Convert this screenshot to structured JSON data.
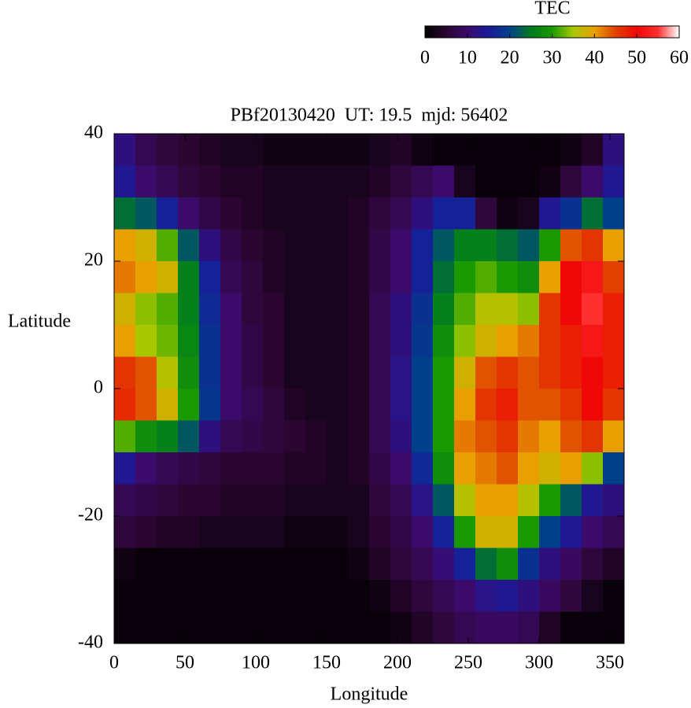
{
  "chart_data": {
    "type": "heatmap",
    "title": "PBf20130420  UT: 19.5  mjd: 56402",
    "x_label": "Longitude",
    "y_label": "Latitude",
    "xlim": [
      0,
      360
    ],
    "ylim": [
      -40,
      40
    ],
    "xticks": [
      0,
      50,
      100,
      150,
      200,
      250,
      300,
      350
    ],
    "yticks": [
      -40,
      -20,
      0,
      20,
      40
    ],
    "x": [
      7.5,
      22.5,
      37.5,
      52.5,
      67.5,
      82.5,
      97.5,
      112.5,
      127.5,
      142.5,
      157.5,
      172.5,
      187.5,
      202.5,
      217.5,
      232.5,
      247.5,
      262.5,
      277.5,
      292.5,
      307.5,
      322.5,
      337.5,
      352.5
    ],
    "y": [
      37.5,
      32.5,
      27.5,
      22.5,
      17.5,
      12.5,
      7.5,
      2.5,
      -2.5,
      -7.5,
      -12.5,
      -17.5,
      -22.5,
      -27.5,
      -32.5,
      -37.5
    ],
    "values": [
      [
        12,
        8,
        6,
        5,
        4,
        3,
        3,
        2,
        2,
        2,
        2,
        2,
        3,
        4,
        2,
        1,
        1,
        1,
        1,
        1,
        1,
        2,
        4,
        12
      ],
      [
        14,
        10,
        8,
        6,
        5,
        4,
        4,
        3,
        3,
        3,
        3,
        3,
        4,
        6,
        8,
        10,
        3,
        1,
        1,
        1,
        2,
        6,
        10,
        14
      ],
      [
        24,
        22,
        16,
        10,
        7,
        5,
        4,
        3,
        3,
        3,
        3,
        4,
        6,
        8,
        12,
        16,
        16,
        6,
        2,
        3,
        14,
        18,
        24,
        20
      ],
      [
        40,
        38,
        32,
        22,
        12,
        7,
        5,
        4,
        3,
        3,
        3,
        4,
        7,
        10,
        16,
        22,
        26,
        26,
        24,
        22,
        30,
        44,
        46,
        40
      ],
      [
        42,
        40,
        38,
        26,
        16,
        8,
        6,
        4,
        3,
        3,
        3,
        4,
        7,
        10,
        16,
        24,
        30,
        32,
        30,
        28,
        40,
        50,
        52,
        45
      ],
      [
        38,
        34,
        32,
        26,
        17,
        10,
        6,
        5,
        3,
        3,
        3,
        4,
        8,
        12,
        18,
        26,
        32,
        36,
        36,
        34,
        46,
        50,
        55,
        48
      ],
      [
        40,
        35,
        33,
        27,
        18,
        10,
        7,
        5,
        3,
        3,
        3,
        4,
        8,
        12,
        19,
        28,
        34,
        38,
        40,
        42,
        46,
        48,
        52,
        48
      ],
      [
        46,
        44,
        36,
        28,
        18,
        10,
        7,
        5,
        3,
        3,
        3,
        4,
        8,
        13,
        20,
        30,
        38,
        44,
        46,
        44,
        46,
        48,
        50,
        48
      ],
      [
        47,
        44,
        38,
        30,
        19,
        10,
        8,
        6,
        4,
        3,
        3,
        4,
        8,
        13,
        20,
        30,
        40,
        46,
        48,
        44,
        44,
        46,
        50,
        46
      ],
      [
        32,
        28,
        26,
        22,
        12,
        8,
        7,
        6,
        5,
        4,
        3,
        4,
        8,
        12,
        20,
        30,
        42,
        44,
        46,
        42,
        40,
        44,
        46,
        40
      ],
      [
        14,
        10,
        8,
        7,
        6,
        5,
        5,
        5,
        4,
        4,
        3,
        4,
        7,
        10,
        17,
        28,
        40,
        42,
        44,
        40,
        38,
        40,
        34,
        20
      ],
      [
        8,
        7,
        6,
        5,
        5,
        4,
        4,
        4,
        3,
        3,
        3,
        3,
        6,
        8,
        13,
        22,
        36,
        40,
        40,
        36,
        30,
        22,
        14,
        12
      ],
      [
        6,
        5,
        4,
        4,
        3,
        3,
        3,
        3,
        2,
        2,
        2,
        3,
        5,
        7,
        10,
        16,
        30,
        38,
        38,
        30,
        20,
        14,
        10,
        8
      ],
      [
        2,
        1,
        1,
        1,
        1,
        1,
        1,
        1,
        1,
        1,
        1,
        2,
        4,
        6,
        8,
        11,
        16,
        24,
        28,
        18,
        12,
        9,
        6,
        4
      ],
      [
        1,
        1,
        1,
        1,
        1,
        1,
        1,
        1,
        1,
        1,
        1,
        1,
        2,
        4,
        6,
        8,
        10,
        13,
        14,
        12,
        9,
        6,
        3,
        1
      ],
      [
        1,
        1,
        1,
        1,
        1,
        1,
        1,
        1,
        1,
        1,
        1,
        1,
        1,
        2,
        4,
        6,
        8,
        9,
        9,
        8,
        4,
        1,
        1,
        1
      ]
    ],
    "colormap": [
      "#000000",
      "#2a0630",
      "#3c0a6a",
      "#1a1a9a",
      "#00408a",
      "#007a20",
      "#1a9a00",
      "#a8c800",
      "#e8a000",
      "#e04000",
      "#f00808",
      "#ff3030",
      "#ffffff"
    ],
    "colorbar": {
      "title": "TEC",
      "lim": [
        0,
        60
      ],
      "ticks": [
        0,
        10,
        20,
        30,
        40,
        50,
        60
      ]
    }
  }
}
